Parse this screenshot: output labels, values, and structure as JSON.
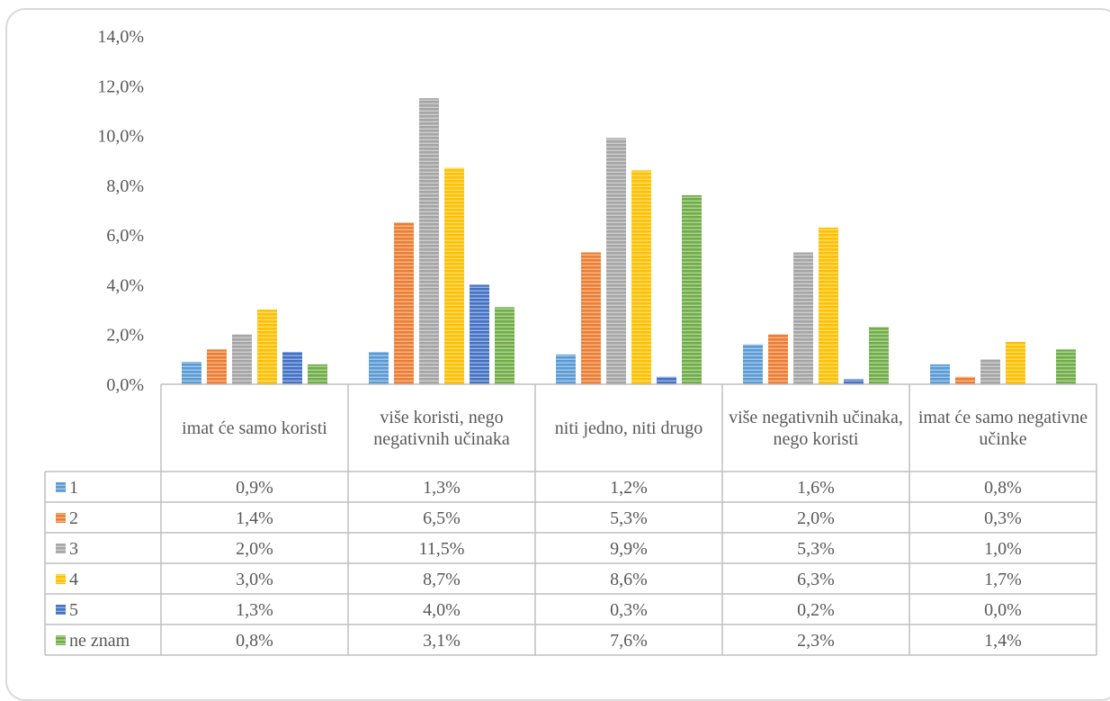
{
  "chart_data": {
    "type": "bar",
    "title": "",
    "xlabel": "",
    "ylabel": "",
    "ylim": [
      0,
      14
    ],
    "y_ticks": [
      "0,0%",
      "2,0%",
      "4,0%",
      "6,0%",
      "8,0%",
      "10,0%",
      "12,0%",
      "14,0%"
    ],
    "grid": false,
    "legend": "data-table",
    "categories": [
      "imat će samo koristi",
      "više koristi, nego negativnih učinaka",
      "niti jedno, niti drugo",
      "više negativnih učinaka, nego koristi",
      "imat će samo negativne učinke"
    ],
    "series": [
      {
        "name": "1",
        "color": "#5b9bd5",
        "values": [
          0.9,
          1.3,
          1.2,
          1.6,
          0.8
        ],
        "labels": [
          "0,9%",
          "1,3%",
          "1,2%",
          "1,6%",
          "0,8%"
        ]
      },
      {
        "name": "2",
        "color": "#ed7d31",
        "values": [
          1.4,
          6.5,
          5.3,
          2.0,
          0.3
        ],
        "labels": [
          "1,4%",
          "6,5%",
          "5,3%",
          "2,0%",
          "0,3%"
        ]
      },
      {
        "name": "3",
        "color": "#a5a5a5",
        "values": [
          2.0,
          11.5,
          9.9,
          5.3,
          1.0
        ],
        "labels": [
          "2,0%",
          "11,5%",
          "9,9%",
          "5,3%",
          "1,0%"
        ]
      },
      {
        "name": "4",
        "color": "#ffc000",
        "values": [
          3.0,
          8.7,
          8.6,
          6.3,
          1.7
        ],
        "labels": [
          "3,0%",
          "8,7%",
          "8,6%",
          "6,3%",
          "1,7%"
        ]
      },
      {
        "name": "5",
        "color": "#4472c4",
        "values": [
          1.3,
          4.0,
          0.3,
          0.2,
          0.0
        ],
        "labels": [
          "1,3%",
          "4,0%",
          "0,3%",
          "0,2%",
          "0,0%"
        ]
      },
      {
        "name": "ne znam",
        "color": "#70ad47",
        "values": [
          0.8,
          3.1,
          7.6,
          2.3,
          1.4
        ],
        "labels": [
          "0,8%",
          "3,1%",
          "7,6%",
          "2,3%",
          "1,4%"
        ]
      }
    ]
  }
}
